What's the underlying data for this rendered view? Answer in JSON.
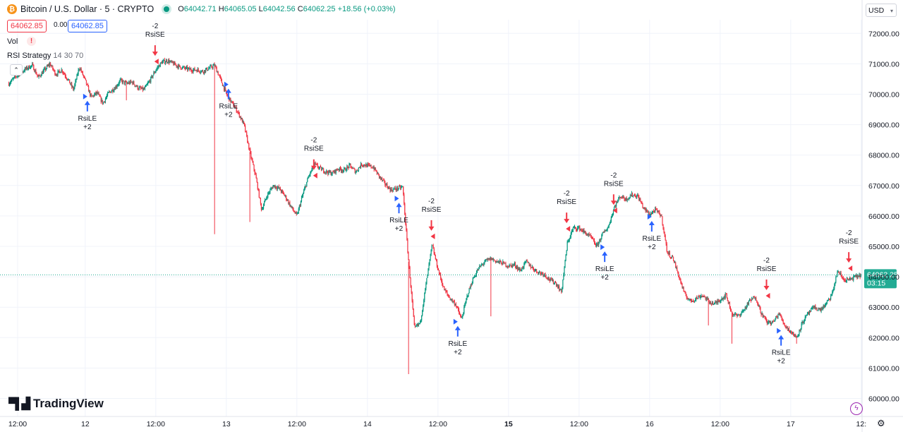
{
  "header": {
    "symbol_title": "Bitcoin / U.S. Dollar · 5 · CRYPTO",
    "ohlc": {
      "o_label": "O",
      "o": "64042.71",
      "h_label": "H",
      "h": "64065.05",
      "l_label": "L",
      "l": "64042.56",
      "c_label": "C",
      "c": "64062.25",
      "change": "+18.56 (+0.03%)"
    },
    "bid": "64062.85",
    "spread": "0.00",
    "ask": "64062.85"
  },
  "indicators": {
    "vol_label": "Vol",
    "strategy_name": "RSI Strategy",
    "strategy_params": "14 30 70"
  },
  "currency_button": "USD",
  "brand": "TradingView",
  "colors": {
    "up": "#089981",
    "down": "#f23645",
    "buy": "#2962ff",
    "sell": "#f23645",
    "grid": "#f0f3fa",
    "last_price": "#22ab94"
  },
  "chart_data": {
    "type": "candlestick",
    "y_axis": {
      "min": 60000,
      "max": 72000,
      "ticks": [
        "60000.00",
        "61000.00",
        "62000.00",
        "63000.00",
        "64000.00",
        "65000.00",
        "66000.00",
        "67000.00",
        "68000.00",
        "69000.00",
        "70000.00",
        "71000.00",
        "72000.00"
      ]
    },
    "x_axis": {
      "labels": [
        "12:00",
        "12",
        "12:00",
        "13",
        "12:00",
        "14",
        "12:00",
        "15",
        "12:00",
        "16",
        "12:00",
        "17",
        "12:"
      ],
      "label_pos": [
        0.5,
        12,
        24,
        36,
        48,
        60,
        72,
        84,
        96,
        108,
        120,
        132,
        144
      ]
    },
    "x_hours_range": [
      -1,
      144
    ],
    "last_price": {
      "value": 64062.25,
      "label": "64062.25",
      "countdown": "03:15"
    },
    "price_path": [
      [
        -1,
        70350
      ],
      [
        0,
        70550
      ],
      [
        1,
        70700
      ],
      [
        2,
        70850
      ],
      [
        3,
        70950
      ],
      [
        4,
        70550
      ],
      [
        5,
        70780
      ],
      [
        6,
        71000
      ],
      [
        7,
        70650
      ],
      [
        8,
        70800
      ],
      [
        9,
        70500
      ],
      [
        10,
        70150
      ],
      [
        11,
        70900
      ],
      [
        12,
        70450
      ],
      [
        13,
        69900
      ],
      [
        14,
        70050
      ],
      [
        15,
        69700
      ],
      [
        16,
        70050
      ],
      [
        17,
        70200
      ],
      [
        18,
        70450
      ],
      [
        19,
        70350
      ],
      [
        20,
        70400
      ],
      [
        21,
        70200
      ],
      [
        22,
        70150
      ],
      [
        23,
        70450
      ],
      [
        24,
        70800
      ],
      [
        25,
        71050
      ],
      [
        26,
        71100
      ],
      [
        27,
        71000
      ],
      [
        28,
        70900
      ],
      [
        29,
        70850
      ],
      [
        30,
        70800
      ],
      [
        31,
        70800
      ],
      [
        32,
        70750
      ],
      [
        33,
        70850
      ],
      [
        34,
        70950
      ],
      [
        35,
        70500
      ],
      [
        36,
        70000
      ],
      [
        37,
        69700
      ],
      [
        38,
        69400
      ],
      [
        39,
        69000
      ],
      [
        40,
        68100
      ],
      [
        41,
        67300
      ],
      [
        42,
        66200
      ],
      [
        43,
        66700
      ],
      [
        44,
        67000
      ],
      [
        45,
        66900
      ],
      [
        46,
        66650
      ],
      [
        47,
        66300
      ],
      [
        48,
        66000
      ],
      [
        49,
        66700
      ],
      [
        50,
        67300
      ],
      [
        51,
        67700
      ],
      [
        52,
        67550
      ],
      [
        53,
        67450
      ],
      [
        54,
        67400
      ],
      [
        55,
        67550
      ],
      [
        56,
        67500
      ],
      [
        57,
        67650
      ],
      [
        58,
        67450
      ],
      [
        59,
        67700
      ],
      [
        60,
        67650
      ],
      [
        61,
        67600
      ],
      [
        62,
        67300
      ],
      [
        63,
        67050
      ],
      [
        64,
        66850
      ],
      [
        65,
        66900
      ],
      [
        66,
        66950
      ],
      [
        67,
        64500
      ],
      [
        68,
        62300
      ],
      [
        69,
        62500
      ],
      [
        70,
        63800
      ],
      [
        71,
        65050
      ],
      [
        72,
        64250
      ],
      [
        73,
        63600
      ],
      [
        74,
        63300
      ],
      [
        75,
        63100
      ],
      [
        76,
        62600
      ],
      [
        77,
        63400
      ],
      [
        78,
        63950
      ],
      [
        79,
        64300
      ],
      [
        80,
        64500
      ],
      [
        81,
        64600
      ],
      [
        82,
        64500
      ],
      [
        83,
        64450
      ],
      [
        84,
        64350
      ],
      [
        85,
        64400
      ],
      [
        86,
        64200
      ],
      [
        87,
        64500
      ],
      [
        88,
        64300
      ],
      [
        89,
        64150
      ],
      [
        90,
        64100
      ],
      [
        91,
        63900
      ],
      [
        92,
        63800
      ],
      [
        93,
        63500
      ],
      [
        94,
        65100
      ],
      [
        95,
        65600
      ],
      [
        96,
        65600
      ],
      [
        97,
        65450
      ],
      [
        98,
        65300
      ],
      [
        99,
        65000
      ],
      [
        100,
        65400
      ],
      [
        101,
        65650
      ],
      [
        102,
        66300
      ],
      [
        103,
        66650
      ],
      [
        104,
        66550
      ],
      [
        105,
        66700
      ],
      [
        106,
        66650
      ],
      [
        107,
        66250
      ],
      [
        108,
        66050
      ],
      [
        109,
        66200
      ],
      [
        110,
        66000
      ],
      [
        111,
        64800
      ],
      [
        112,
        64600
      ],
      [
        113,
        64000
      ],
      [
        114,
        63400
      ],
      [
        115,
        63200
      ],
      [
        116,
        63300
      ],
      [
        117,
        63400
      ],
      [
        118,
        63200
      ],
      [
        119,
        63100
      ],
      [
        120,
        63250
      ],
      [
        121,
        63400
      ],
      [
        122,
        62800
      ],
      [
        123,
        62700
      ],
      [
        124,
        62900
      ],
      [
        125,
        63200
      ],
      [
        126,
        63350
      ],
      [
        127,
        62800
      ],
      [
        128,
        62500
      ],
      [
        129,
        62500
      ],
      [
        130,
        62800
      ],
      [
        131,
        62400
      ],
      [
        132,
        62200
      ],
      [
        133,
        62000
      ],
      [
        134,
        62500
      ],
      [
        135,
        62800
      ],
      [
        136,
        63000
      ],
      [
        137,
        62900
      ],
      [
        138,
        63100
      ],
      [
        139,
        63400
      ],
      [
        140,
        64200
      ],
      [
        141,
        63900
      ],
      [
        142,
        63900
      ],
      [
        143,
        64000
      ],
      [
        144,
        64060
      ]
    ],
    "wicks_extreme": [
      [
        19,
        69800
      ],
      [
        34,
        65400
      ],
      [
        40,
        65800
      ],
      [
        67,
        60800
      ],
      [
        81,
        62700
      ],
      [
        118,
        62400
      ],
      [
        122,
        61800
      ],
      [
        133,
        61800
      ]
    ],
    "signals": [
      {
        "type": "buy",
        "x": 12,
        "y": 69900,
        "lines": [
          "RsiLE",
          "+2"
        ]
      },
      {
        "type": "sell",
        "x": 24,
        "y": 71100,
        "lines": [
          "-2",
          "RsiSE"
        ]
      },
      {
        "type": "buy",
        "x": 36,
        "y": 70300,
        "lines": [
          "RsiLE",
          "+2"
        ]
      },
      {
        "type": "sell",
        "x": 51,
        "y": 67350,
        "lines": [
          "-2",
          "RsiSE"
        ]
      },
      {
        "type": "buy",
        "x": 65,
        "y": 66550,
        "lines": [
          "RsiLE",
          "+2"
        ]
      },
      {
        "type": "sell",
        "x": 71,
        "y": 65350,
        "lines": [
          "-2",
          "RsiSE"
        ]
      },
      {
        "type": "buy",
        "x": 75,
        "y": 62500,
        "lines": [
          "RsiLE",
          "+2"
        ]
      },
      {
        "type": "sell",
        "x": 94,
        "y": 65600,
        "lines": [
          "-2",
          "RsiSE"
        ]
      },
      {
        "type": "buy",
        "x": 100,
        "y": 64950,
        "lines": [
          "RsiLE",
          "+2"
        ]
      },
      {
        "type": "sell",
        "x": 102,
        "y": 66200,
        "lines": [
          "-2",
          "RsiSE"
        ]
      },
      {
        "type": "buy",
        "x": 108,
        "y": 65950,
        "lines": [
          "RsiLE",
          "+2"
        ]
      },
      {
        "type": "sell",
        "x": 128,
        "y": 63400,
        "lines": [
          "-2",
          "RsiSE"
        ]
      },
      {
        "type": "buy",
        "x": 130,
        "y": 62200,
        "lines": [
          "RsiLE",
          "+2"
        ]
      },
      {
        "type": "sell",
        "x": 142,
        "y": 64300,
        "lines": [
          "-2",
          "RsiSE"
        ]
      }
    ]
  }
}
